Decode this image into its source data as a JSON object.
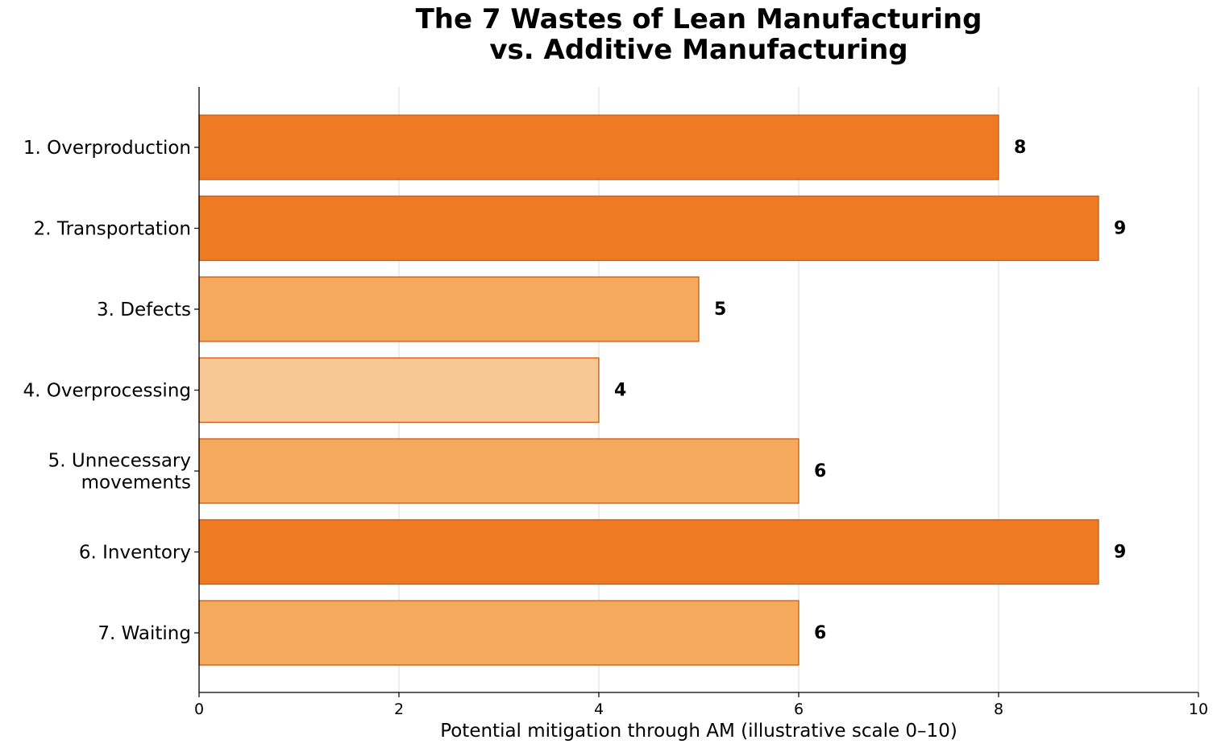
{
  "chart_data": {
    "type": "bar",
    "orientation": "horizontal",
    "title_line1": "The 7 Wastes of Lean Manufacturing",
    "title_line2": "vs. Additive Manufacturing",
    "xlabel": "Potential mitigation through AM (illustrative scale 0–10)",
    "ylabel": "",
    "xlim": [
      0,
      10
    ],
    "xticks": [
      "0",
      "2",
      "4",
      "6",
      "8",
      "10"
    ],
    "grid": "vertical",
    "categories": [
      [
        "1. Overproduction"
      ],
      [
        "2. Transportation"
      ],
      [
        "3. Defects"
      ],
      [
        "4. Overprocessing"
      ],
      [
        "5. Unnecessary",
        "movements"
      ],
      [
        "6. Inventory"
      ],
      [
        "7. Waiting"
      ]
    ],
    "values": [
      8,
      9,
      5,
      4,
      6,
      9,
      6
    ],
    "value_labels": [
      "8",
      "9",
      "5",
      "4",
      "6",
      "9",
      "6"
    ],
    "colors": {
      "high": "#ef7a24",
      "medium": "#f5a95d",
      "low": "#f7c893",
      "edge": "#c95a14",
      "grid": "#dddddd",
      "axis": "#000000"
    }
  }
}
